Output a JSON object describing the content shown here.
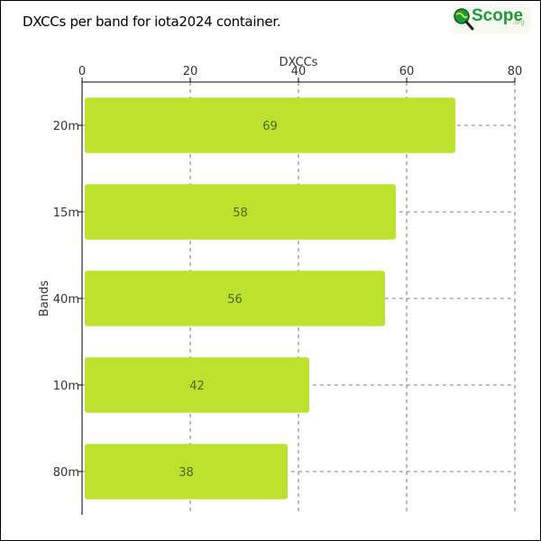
{
  "title": "DXCCs per band for iota2024 container.",
  "logo": {
    "text": "Scope",
    "suffix": ".org",
    "icon": "magnifier-globe-icon",
    "color": "#1f9a3a"
  },
  "colors": {
    "bar": "#bde22e",
    "grid": "#555555",
    "axis": "#000000"
  },
  "chart_data": {
    "type": "bar",
    "orientation": "horizontal",
    "categories": [
      "20m",
      "15m",
      "40m",
      "10m",
      "80m"
    ],
    "values": [
      69,
      58,
      56,
      42,
      38
    ],
    "xlabel": "DXCCs",
    "ylabel": "Bands",
    "xlim": [
      0,
      80
    ],
    "xticks": [
      0,
      20,
      40,
      60,
      80
    ],
    "x_axis_position": "top",
    "grid": "dashed vertical and horizontal",
    "data_labels": true
  }
}
